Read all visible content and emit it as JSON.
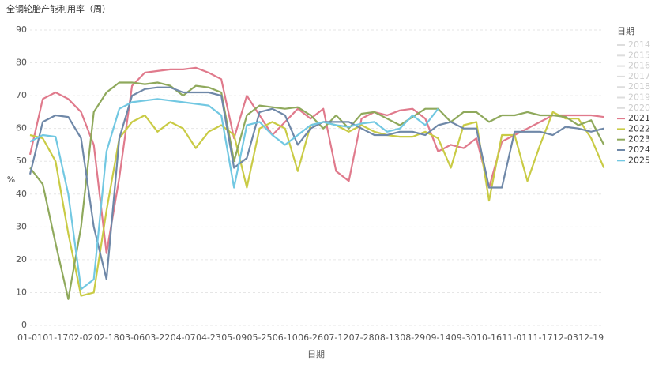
{
  "chart_data": {
    "type": "line",
    "title": "全钢轮胎产能利用率（周）",
    "x_label": "日期",
    "y_label": "%",
    "legend_title": "日期",
    "categories": [
      "01-01",
      null,
      "01-17",
      null,
      "02-02",
      null,
      "02-18",
      null,
      "03-06",
      null,
      "03-22",
      null,
      "04-07",
      null,
      "04-23",
      null,
      "05-09",
      null,
      "05-25",
      null,
      "06-10",
      null,
      "06-26",
      null,
      "07-12",
      null,
      "07-28",
      null,
      "08-13",
      null,
      "08-29",
      null,
      "09-14",
      null,
      "09-30",
      null,
      "10-16",
      null,
      "11-01",
      null,
      "11-17",
      null,
      "12-03",
      null,
      "12-19",
      null
    ],
    "ylim": [
      0,
      90
    ],
    "yticks": [
      0,
      10,
      20,
      30,
      40,
      50,
      60,
      70,
      80,
      90
    ],
    "grid": true,
    "legend": "right",
    "legend_hidden": [
      "2014",
      "2015",
      "2016",
      "2017",
      "2018",
      "2019",
      "2020"
    ],
    "series": [
      {
        "name": "2021",
        "color": "#e07a8c",
        "values": [
          52,
          69,
          71,
          69,
          65,
          55,
          22,
          45,
          73,
          77,
          77.5,
          78,
          78,
          78.5,
          77,
          75,
          57,
          70,
          64,
          58,
          62,
          66,
          63,
          66,
          47,
          44,
          63,
          65,
          64,
          65.5,
          66,
          63,
          53,
          55,
          54,
          57,
          42,
          56,
          58,
          60,
          62,
          64,
          64,
          64,
          64,
          63.5
        ]
      },
      {
        "name": "2022",
        "color": "#c9cb45",
        "values": [
          58,
          57,
          50,
          28,
          9,
          10,
          35,
          57,
          62,
          64,
          59,
          62,
          60,
          54,
          59,
          61,
          58,
          42,
          60,
          62,
          60,
          47,
          61,
          62,
          61,
          59,
          61,
          59,
          58,
          57.5,
          57.5,
          59,
          57,
          48,
          61,
          62,
          38,
          58,
          58,
          44,
          55,
          65,
          63,
          63,
          57,
          48
        ]
      },
      {
        "name": "2023",
        "color": "#8fa95c",
        "values": [
          48,
          43,
          25,
          8,
          30,
          65,
          71,
          74,
          74,
          73.5,
          74,
          73,
          70,
          73,
          72.5,
          71,
          50,
          64,
          67,
          66.5,
          66,
          66.5,
          64,
          60,
          64,
          60,
          64.5,
          65,
          63,
          61,
          63.5,
          66,
          66,
          62,
          65,
          65,
          62,
          64,
          64,
          65,
          64,
          64,
          63.5,
          61,
          62.5,
          55
        ]
      },
      {
        "name": "2024",
        "color": "#6f88a8",
        "values": [
          46,
          62,
          64,
          63.5,
          57,
          30,
          14,
          57,
          70,
          72,
          72.5,
          72.5,
          71,
          71,
          71,
          70,
          48,
          51,
          65,
          66,
          64,
          55,
          60,
          62,
          62,
          62,
          60,
          58,
          58,
          59,
          59,
          58,
          61,
          62,
          60,
          60,
          42,
          42,
          59,
          59,
          59,
          58,
          60.5,
          60,
          59,
          60
        ]
      },
      {
        "name": "2025",
        "color": "#72c8e2",
        "values": [
          56,
          58,
          57.5,
          40,
          11,
          14,
          53,
          66,
          68,
          68.5,
          69,
          68.5,
          68,
          67.5,
          67,
          64,
          42,
          61,
          62,
          58,
          55,
          58,
          61,
          62,
          61,
          60.5,
          61.5,
          62,
          59,
          60,
          64,
          61,
          66,
          null,
          null,
          null,
          null,
          null,
          null,
          null,
          null,
          null,
          null,
          null,
          null,
          null
        ]
      }
    ]
  }
}
